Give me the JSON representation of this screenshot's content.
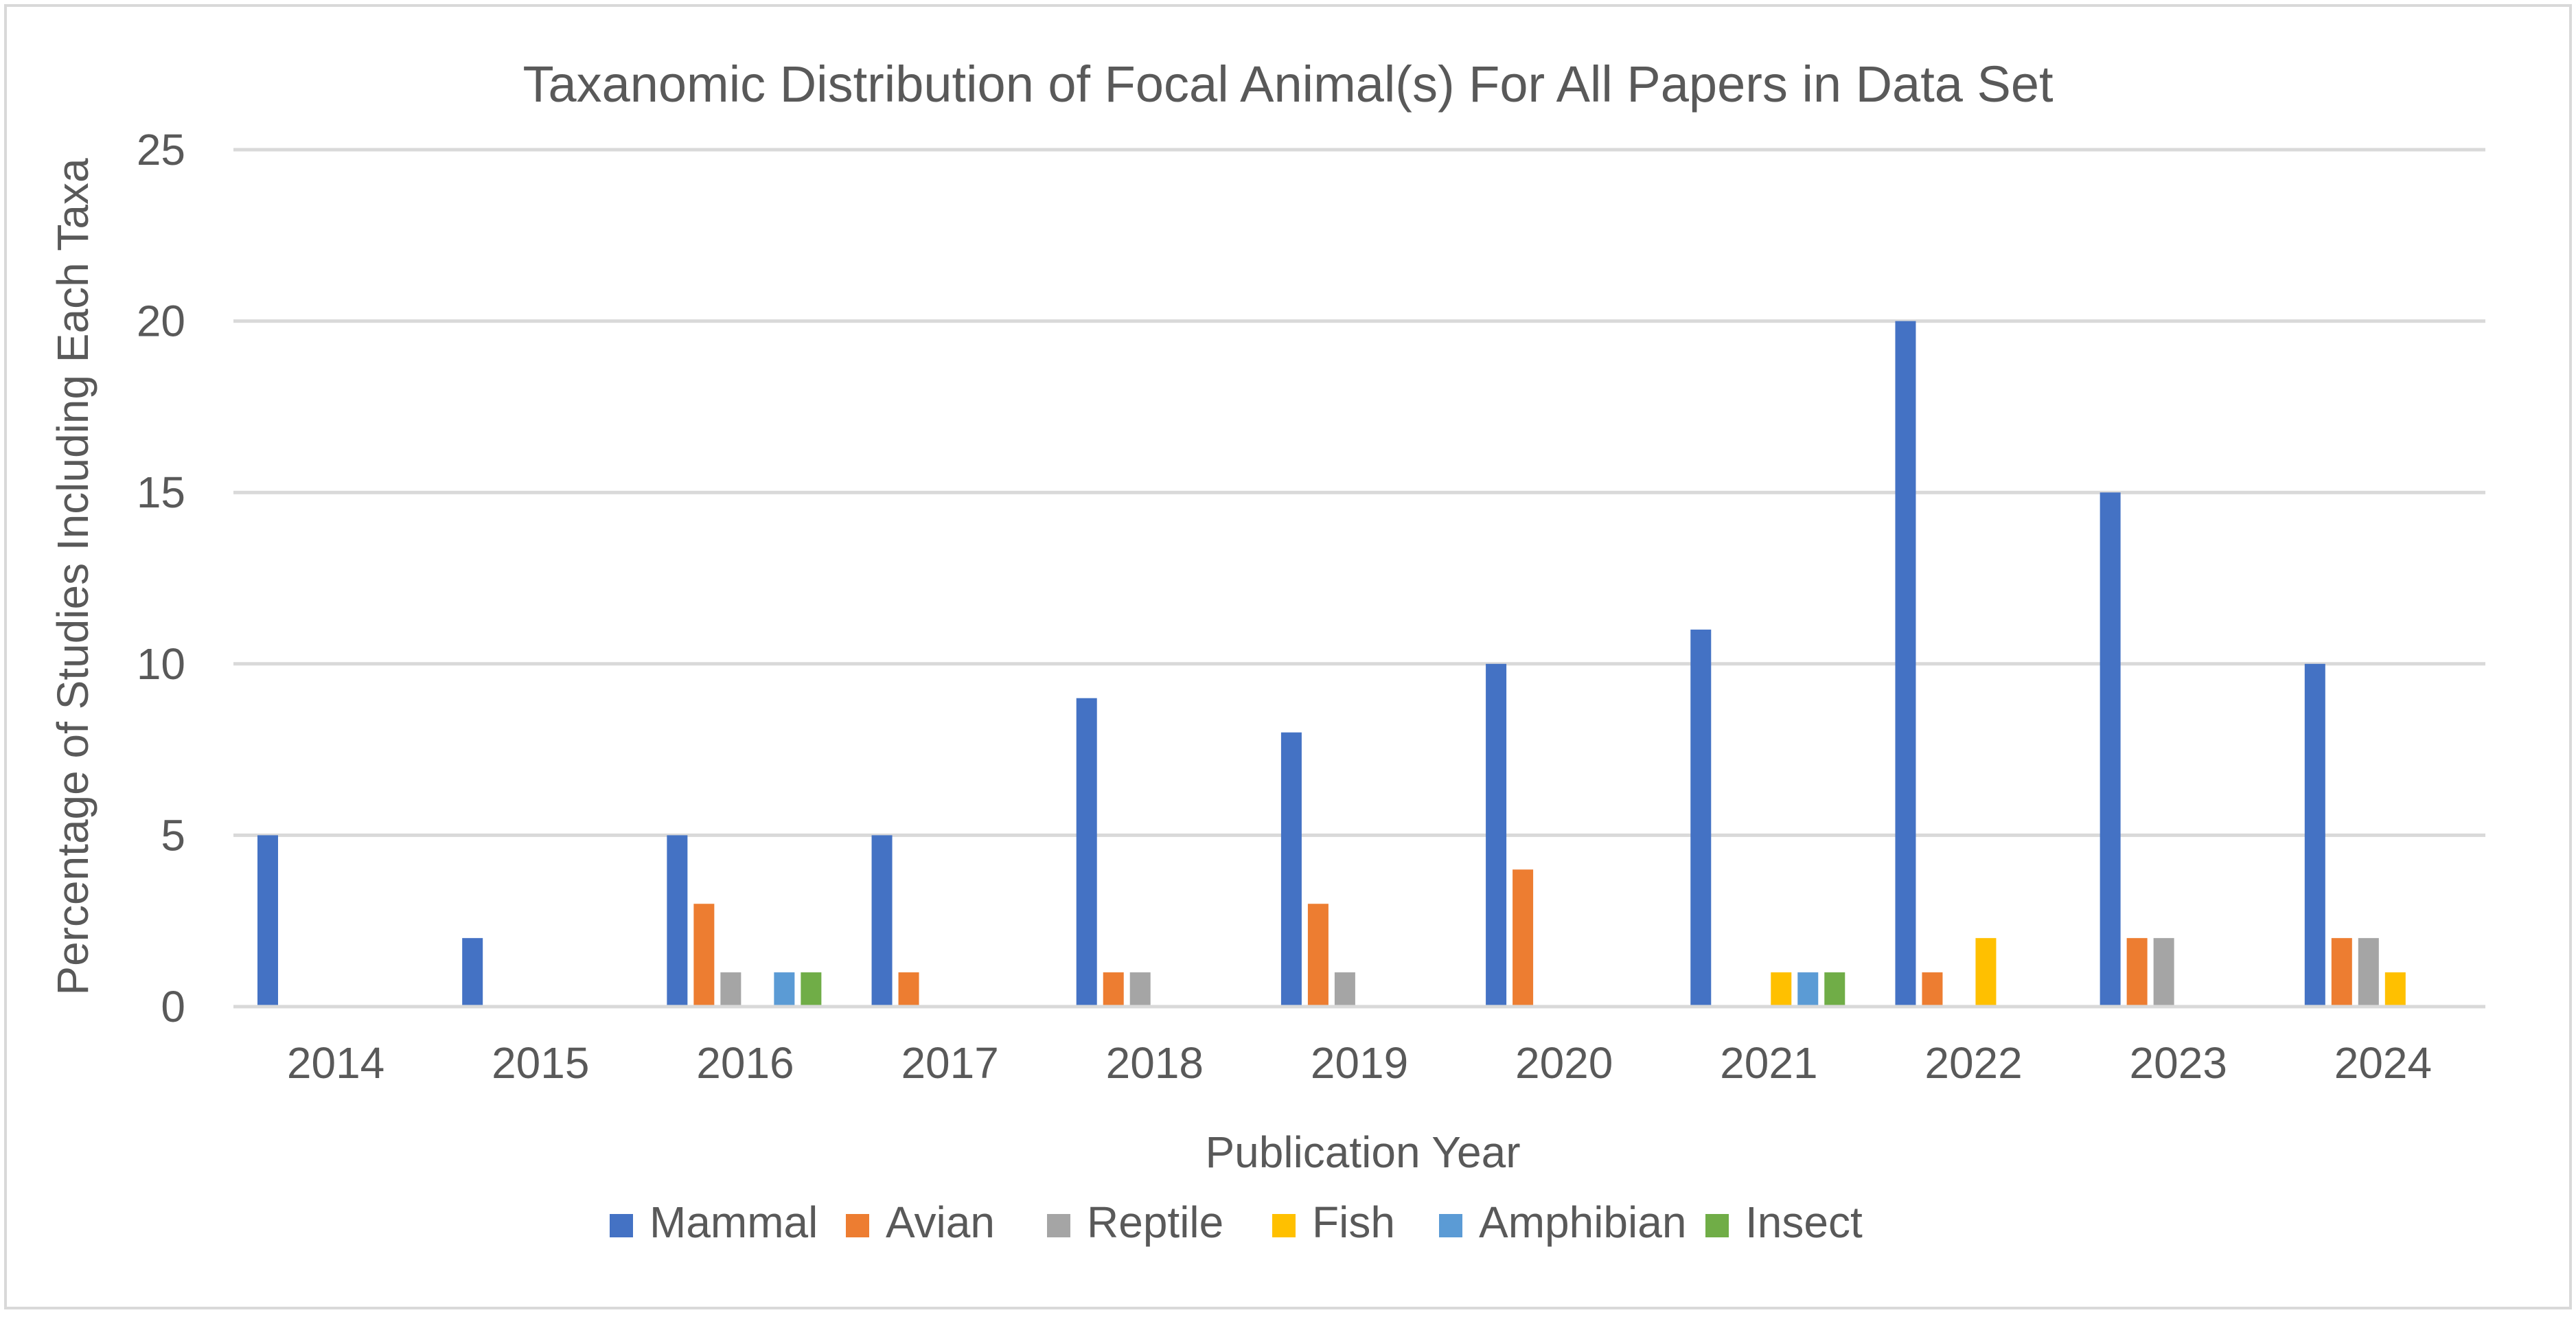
{
  "chart_data": {
    "type": "bar",
    "title": "Taxanomic Distribution of Focal Animal(s) For All Papers in Data Set",
    "xlabel": "Publication Year",
    "ylabel": "Percentage of Studies Including Each Taxa",
    "ylim": [
      0,
      25
    ],
    "yticks": [
      "0",
      "5",
      "10",
      "15",
      "20",
      "25"
    ],
    "grid": true,
    "legend_position": "bottom",
    "categories": [
      "2014",
      "2015",
      "2016",
      "2017",
      "2018",
      "2019",
      "2020",
      "2021",
      "2022",
      "2023",
      "2024"
    ],
    "series": [
      {
        "name": "Mammal",
        "color": "#4472C4",
        "values": [
          5,
          2,
          5,
          5,
          9,
          8,
          10,
          11,
          20,
          15,
          10
        ]
      },
      {
        "name": "Avian",
        "color": "#ED7D31",
        "values": [
          0,
          0,
          3,
          1,
          1,
          3,
          4,
          0,
          1,
          2,
          2
        ]
      },
      {
        "name": "Reptile",
        "color": "#A5A5A5",
        "values": [
          0,
          0,
          1,
          0,
          1,
          1,
          0,
          0,
          0,
          2,
          2
        ]
      },
      {
        "name": "Fish",
        "color": "#FFC000",
        "values": [
          0,
          0,
          0,
          0,
          0,
          0,
          0,
          1,
          2,
          0,
          1
        ]
      },
      {
        "name": "Amphibian",
        "color": "#5B9BD5",
        "values": [
          0,
          0,
          1,
          0,
          0,
          0,
          0,
          1,
          0,
          0,
          0
        ]
      },
      {
        "name": "Insect",
        "color": "#70AD47",
        "values": [
          0,
          0,
          1,
          0,
          0,
          0,
          0,
          1,
          0,
          0,
          0
        ]
      }
    ]
  }
}
